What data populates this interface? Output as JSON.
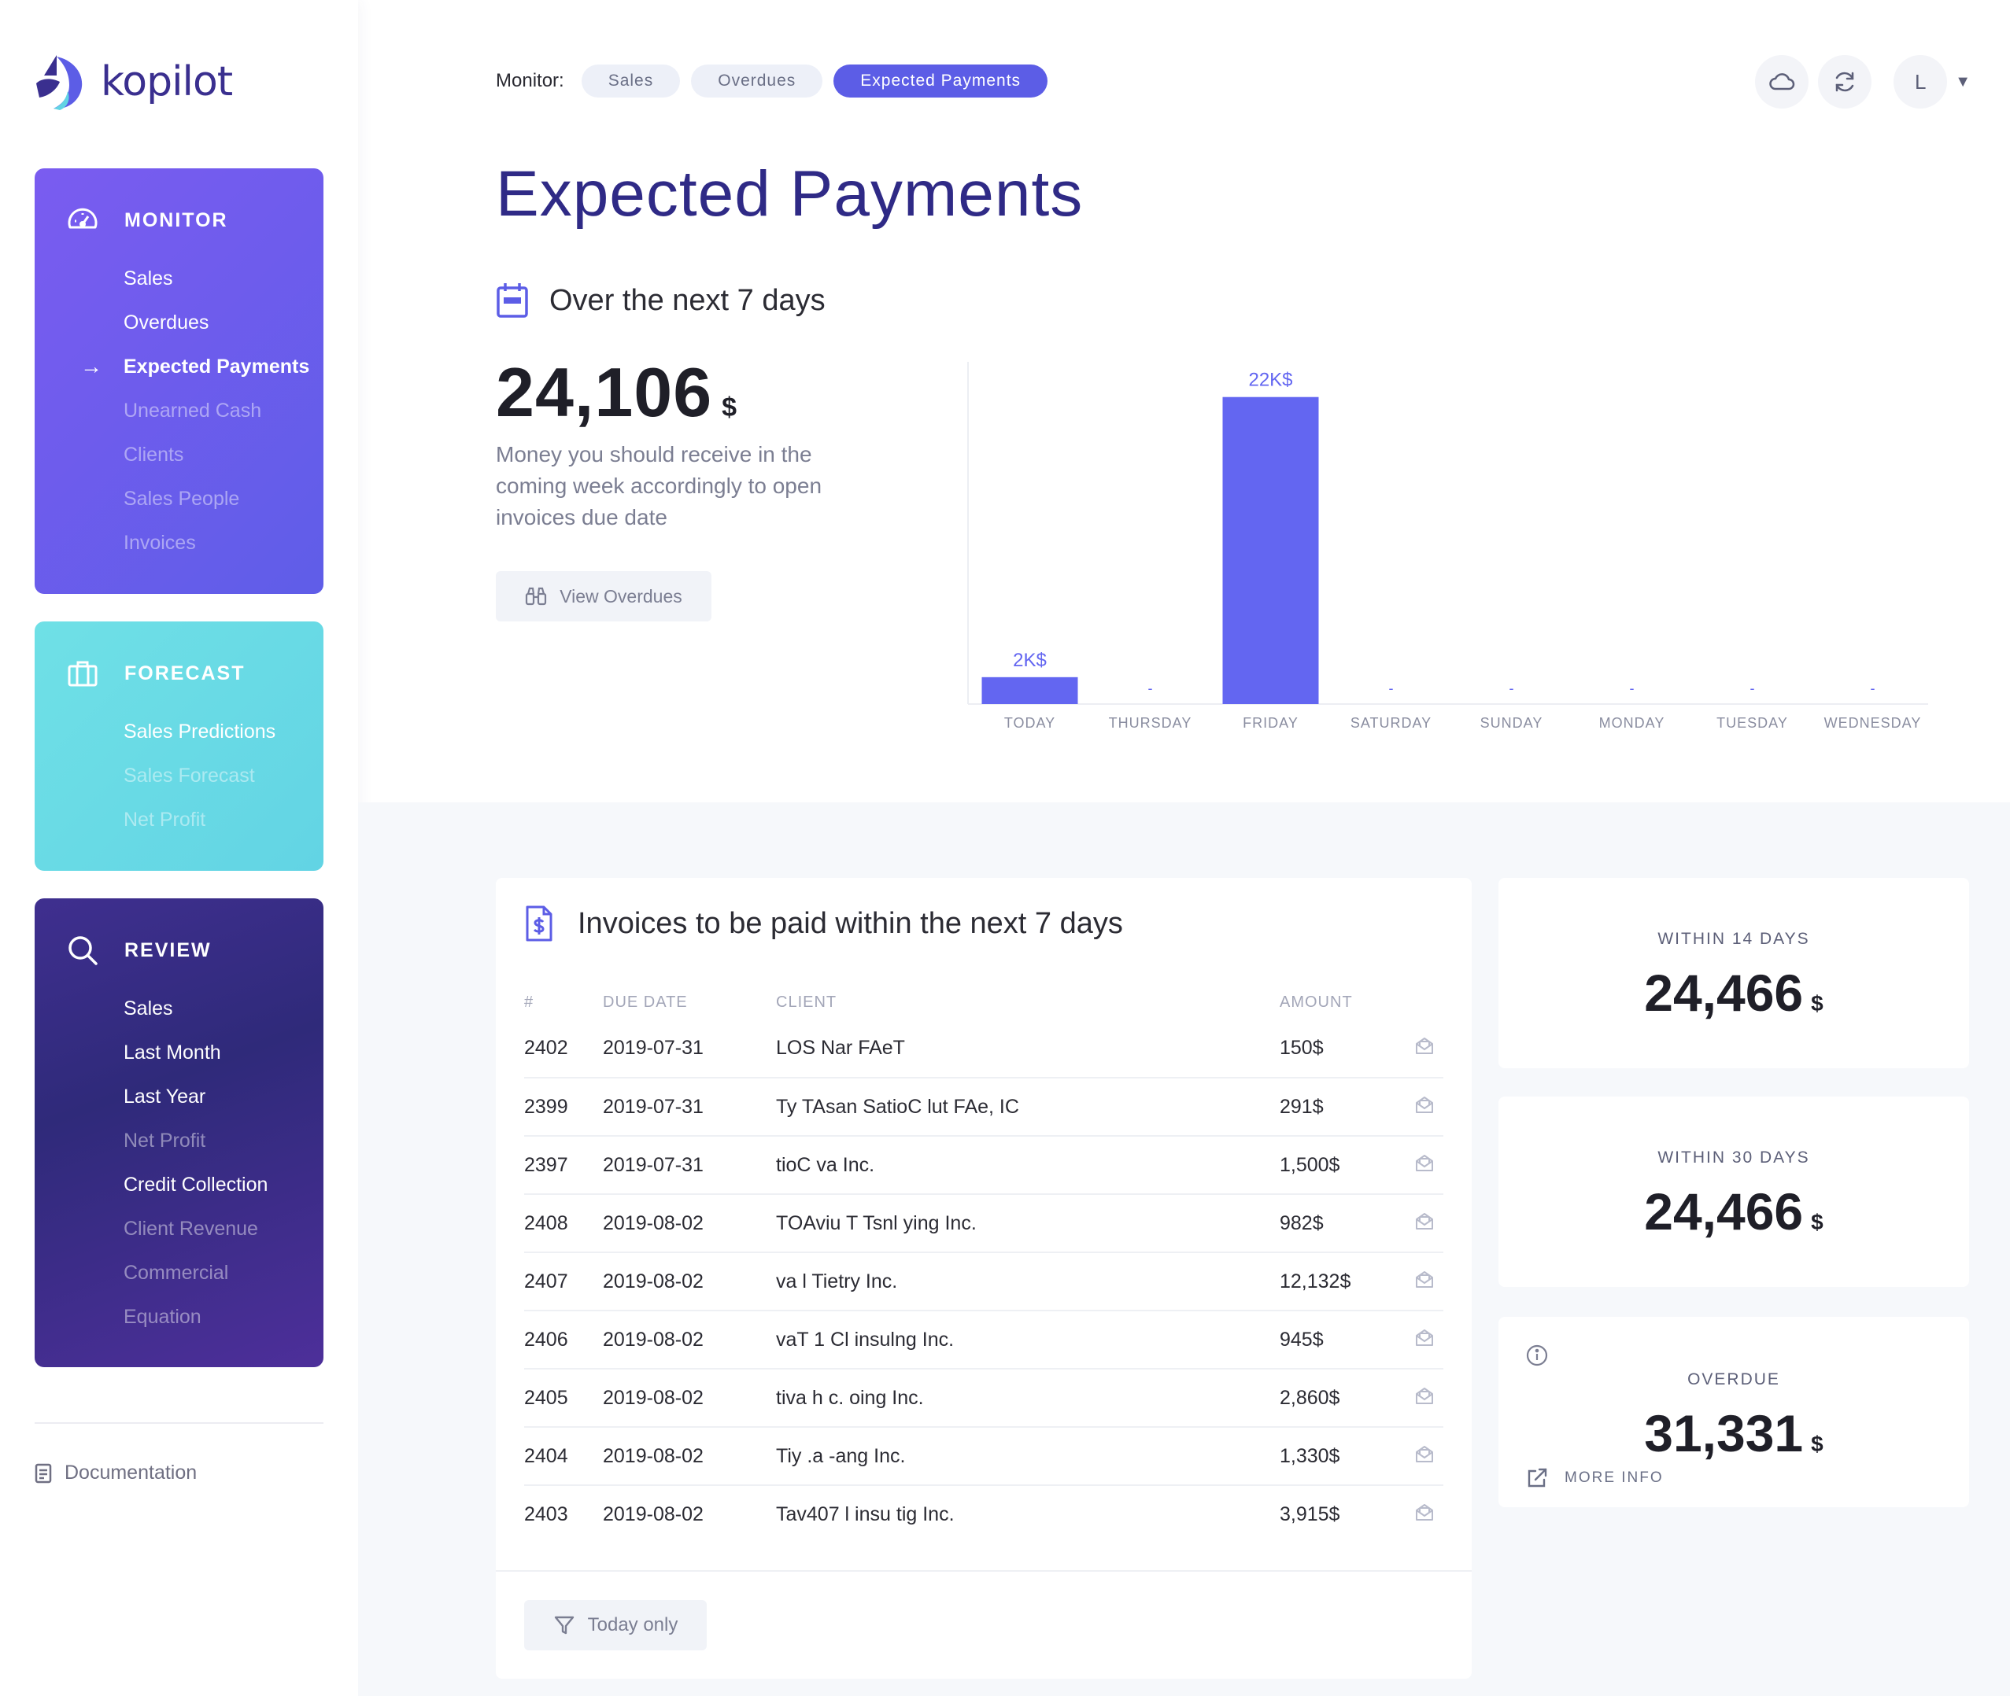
{
  "brand": {
    "name": "kopilot",
    "colors": {
      "primary": "#5c5de6",
      "title": "#2f2a86",
      "forecast": "#62d4e4",
      "review": "#35297f"
    }
  },
  "sidebar": {
    "monitor": {
      "title": "MONITOR",
      "icon": "speedometer-icon",
      "items": [
        {
          "label": "Sales",
          "state": "normal"
        },
        {
          "label": "Overdues",
          "state": "normal"
        },
        {
          "label": "Expected Payments",
          "state": "active"
        },
        {
          "label": "Unearned Cash",
          "state": "muted"
        },
        {
          "label": "Clients",
          "state": "muted"
        },
        {
          "label": "Sales People",
          "state": "muted"
        },
        {
          "label": "Invoices",
          "state": "muted"
        }
      ]
    },
    "forecast": {
      "title": "FORECAST",
      "icon": "briefcase-icon",
      "items": [
        {
          "label": "Sales Predictions",
          "state": "normal"
        },
        {
          "label": "Sales Forecast",
          "state": "muted"
        },
        {
          "label": "Net Profit",
          "state": "muted"
        }
      ]
    },
    "review": {
      "title": "REVIEW",
      "icon": "search-icon",
      "items": [
        {
          "label": "Sales",
          "state": "normal"
        },
        {
          "label": "Last Month",
          "state": "normal"
        },
        {
          "label": "Last Year",
          "state": "normal"
        },
        {
          "label": "Net Profit",
          "state": "muted"
        },
        {
          "label": "Credit Collection",
          "state": "normal"
        },
        {
          "label": "Client Revenue",
          "state": "muted"
        },
        {
          "label": "Commercial",
          "state": "muted"
        },
        {
          "label": "Equation",
          "state": "muted"
        }
      ]
    },
    "documentation": "Documentation"
  },
  "header": {
    "monitor_label": "Monitor:",
    "pills": [
      {
        "label": "Sales",
        "active": false
      },
      {
        "label": "Overdues",
        "active": false
      },
      {
        "label": "Expected Payments",
        "active": true
      }
    ],
    "avatar_initial": "L"
  },
  "main": {
    "title": "Expected Payments",
    "period_heading": "Over the next 7 days",
    "total": "24,106",
    "currency": "$",
    "description": "Money you should receive in the coming week accordingly to open invoices due date",
    "view_button": "View Overdues"
  },
  "chart_data": {
    "type": "bar",
    "categories": [
      "TODAY",
      "THURSDAY",
      "FRIDAY",
      "SATURDAY",
      "SUNDAY",
      "MONDAY",
      "TUESDAY",
      "WEDNESDAY"
    ],
    "values": [
      1941,
      0,
      22165,
      0,
      0,
      0,
      0,
      0
    ],
    "data_labels": [
      "2K$",
      "-",
      "22K$",
      "-",
      "-",
      "-",
      "-",
      "-"
    ],
    "title": "",
    "xlabel": "",
    "ylabel": "",
    "ylim": [
      0,
      23000
    ],
    "grid": false,
    "legend": "none",
    "color": "#6366f1"
  },
  "invoices": {
    "heading": "Invoices to be paid within the next 7 days",
    "columns": [
      "#",
      "DUE DATE",
      "CLIENT",
      "AMOUNT"
    ],
    "rows": [
      {
        "num": "2402",
        "date": "2019-07-31",
        "client": "LOS Nar FAeT",
        "amount": "150$"
      },
      {
        "num": "2399",
        "date": "2019-07-31",
        "client": "Ty TAsan SatioC lut FAe, IC",
        "amount": "291$"
      },
      {
        "num": "2397",
        "date": "2019-07-31",
        "client": "tioC va Inc.",
        "amount": "1,500$"
      },
      {
        "num": "2408",
        "date": "2019-08-02",
        "client": "TOAviu T Tsnl ying Inc.",
        "amount": "982$"
      },
      {
        "num": "2407",
        "date": "2019-08-02",
        "client": "va l Tietry Inc.",
        "amount": "12,132$"
      },
      {
        "num": "2406",
        "date": "2019-08-02",
        "client": "vaT 1 Cl insulng Inc.",
        "amount": "945$"
      },
      {
        "num": "2405",
        "date": "2019-08-02",
        "client": "tiva h c. oing Inc.",
        "amount": "2,860$"
      },
      {
        "num": "2404",
        "date": "2019-08-02",
        "client": "Tiy .a -ang Inc.",
        "amount": "1,330$"
      },
      {
        "num": "2403",
        "date": "2019-08-02",
        "client": "Tav407 l insu tig Inc.",
        "amount": "3,915$"
      }
    ],
    "filter_button": "Today only"
  },
  "stats": {
    "within_14": {
      "label": "WITHIN 14 DAYS",
      "value": "24,466",
      "currency": "$"
    },
    "within_30": {
      "label": "WITHIN 30 DAYS",
      "value": "24,466",
      "currency": "$"
    },
    "overdue": {
      "label": "OVERDUE",
      "value": "31,331",
      "currency": "$",
      "more": "MORE INFO"
    }
  }
}
